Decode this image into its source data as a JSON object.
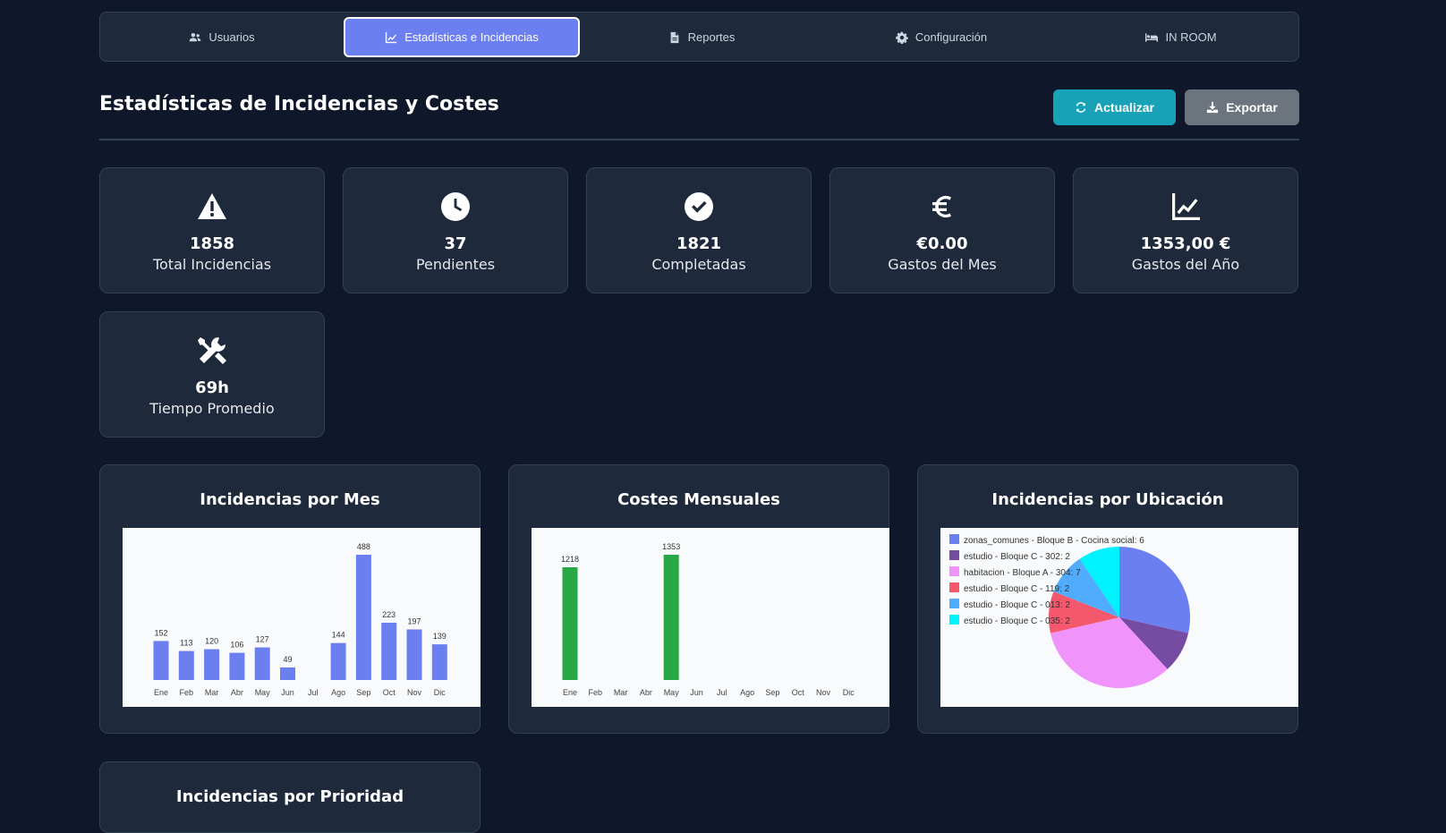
{
  "nav": {
    "tabs": [
      {
        "label": "Usuarios",
        "icon": "users-icon"
      },
      {
        "label": "Estadísticas e Incidencias",
        "icon": "chart-line-icon",
        "active": true
      },
      {
        "label": "Reportes",
        "icon": "file-icon"
      },
      {
        "label": "Configuración",
        "icon": "gear-icon"
      },
      {
        "label": "IN ROOM",
        "icon": "bed-icon"
      }
    ]
  },
  "header": {
    "title": "Estadísticas de Incidencias y Costes",
    "refresh_label": "Actualizar",
    "export_label": "Exportar"
  },
  "stats": [
    {
      "value": "1858",
      "label": "Total Incidencias",
      "icon": "warning-icon"
    },
    {
      "value": "37",
      "label": "Pendientes",
      "icon": "clock-icon"
    },
    {
      "value": "1821",
      "label": "Completadas",
      "icon": "check-circle-icon"
    },
    {
      "value": "€0.00",
      "label": "Gastos del Mes",
      "icon": "euro-icon"
    },
    {
      "value": "1353,00 €",
      "label": "Gastos del Año",
      "icon": "chart-line-icon"
    },
    {
      "value": "69h",
      "label": "Tiempo Promedio",
      "icon": "tools-icon"
    }
  ],
  "charts": {
    "by_month_title": "Incidencias por Mes",
    "costs_title": "Costes Mensuales",
    "by_location_title": "Incidencias por Ubicación",
    "by_priority_title": "Incidencias por Prioridad"
  },
  "chart_data": [
    {
      "type": "bar",
      "title": "Incidencias por Mes",
      "categories": [
        "Ene",
        "Feb",
        "Mar",
        "Abr",
        "May",
        "Jun",
        "Jul",
        "Ago",
        "Sep",
        "Oct",
        "Nov",
        "Dic"
      ],
      "values": [
        152,
        113,
        120,
        106,
        127,
        49,
        0,
        144,
        488,
        223,
        197,
        139
      ],
      "labels": [
        "152",
        "113",
        "120",
        "106",
        "127",
        "49",
        "",
        "144",
        "488",
        "223",
        "197",
        "139"
      ],
      "color": "#6b7ff0",
      "ylim": [
        0,
        488
      ]
    },
    {
      "type": "bar",
      "title": "Costes Mensuales",
      "categories": [
        "Ene",
        "Feb",
        "Mar",
        "Abr",
        "May",
        "Jun",
        "Jul",
        "Ago",
        "Sep",
        "Oct",
        "Nov",
        "Dic"
      ],
      "values": [
        1218,
        0,
        0,
        0,
        1353,
        0,
        0,
        0,
        0,
        0,
        0,
        0
      ],
      "labels": [
        "1218",
        "",
        "",
        "",
        "1353",
        "",
        "",
        "",
        "",
        "",
        "",
        ""
      ],
      "color": "#28a745",
      "ylim": [
        0,
        1353
      ]
    },
    {
      "type": "pie",
      "title": "Incidencias por Ubicación",
      "legend_placement": "top-left",
      "slices": [
        {
          "label": "zonas_comunes - Bloque B - Cocina social: 6",
          "value": 6,
          "color": "#6b7ff0"
        },
        {
          "label": "estudio - Bloque C - 302: 2",
          "value": 2,
          "color": "#764ba2"
        },
        {
          "label": "habitacion - Bloque A - 304: 7",
          "value": 7,
          "color": "#f093fb"
        },
        {
          "label": "estudio - Bloque C - 119: 2",
          "value": 2,
          "color": "#f5576c"
        },
        {
          "label": "estudio - Bloque C - 013: 2",
          "value": 2,
          "color": "#4facfe"
        },
        {
          "label": "estudio - Bloque C - 035: 2",
          "value": 2,
          "color": "#00f2fe"
        }
      ]
    }
  ]
}
